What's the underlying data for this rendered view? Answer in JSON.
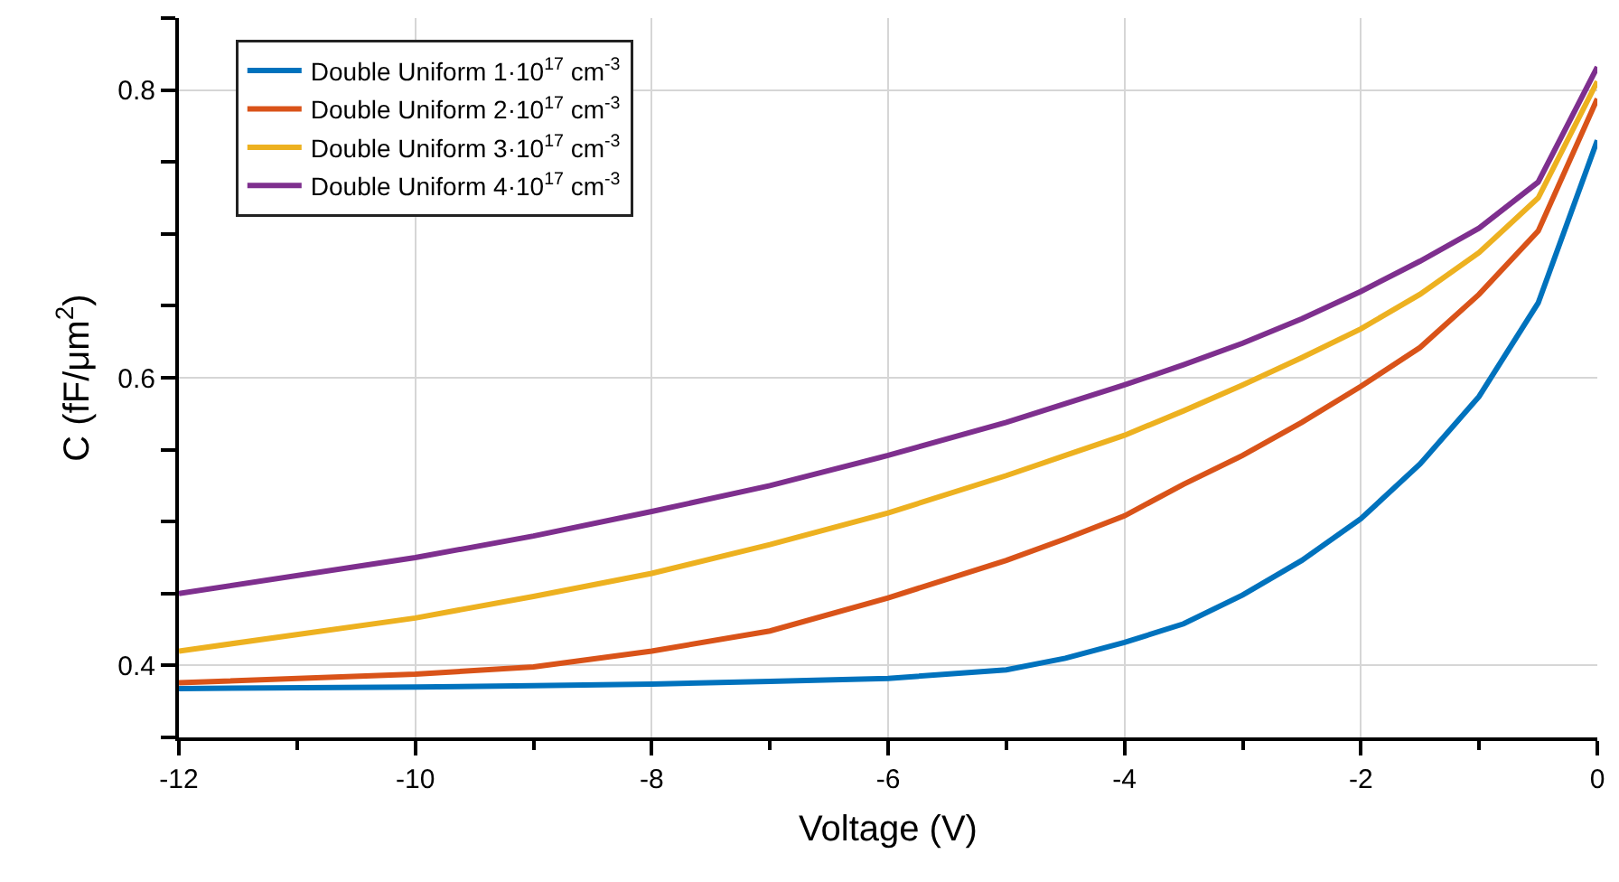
{
  "chart_data": {
    "type": "line",
    "xlabel": "Voltage (V)",
    "ylabel": "C (fF/μm$^{2}$)",
    "x": [
      -12,
      -10,
      -9,
      -8,
      -7,
      -6,
      -5,
      -4.5,
      -4,
      -3.5,
      -3,
      -2.5,
      -2,
      -1.5,
      -1,
      -0.5,
      0
    ],
    "series": [
      {
        "name": "Double Uniform 1·10$^{17}$ cm$^{-3}$",
        "color": "#0072bd",
        "values": [
          0.384,
          0.385,
          0.386,
          0.387,
          0.389,
          0.391,
          0.397,
          0.405,
          0.416,
          0.429,
          0.449,
          0.473,
          0.502,
          0.54,
          0.587,
          0.652,
          0.765
        ]
      },
      {
        "name": "Double Uniform 2·10$^{17}$ cm$^{-3}$",
        "color": "#d95319",
        "values": [
          0.388,
          0.394,
          0.399,
          0.41,
          0.424,
          0.447,
          0.473,
          0.488,
          0.504,
          0.526,
          0.546,
          0.569,
          0.594,
          0.621,
          0.658,
          0.702,
          0.794
        ]
      },
      {
        "name": "Double Uniform 3·10$^{17}$ cm$^{-3}$",
        "color": "#edb120",
        "values": [
          0.41,
          0.433,
          0.448,
          0.464,
          0.484,
          0.506,
          0.532,
          0.546,
          0.56,
          0.577,
          0.595,
          0.614,
          0.634,
          0.658,
          0.687,
          0.725,
          0.806
        ]
      },
      {
        "name": "Double Uniform 4·10$^{17}$ cm$^{-3}$",
        "color": "#7e2f8e",
        "values": [
          0.45,
          0.475,
          0.49,
          0.507,
          0.525,
          0.546,
          0.569,
          0.582,
          0.595,
          0.609,
          0.624,
          0.641,
          0.66,
          0.681,
          0.704,
          0.736,
          0.816
        ]
      }
    ],
    "xlim": [
      -12,
      0
    ],
    "xticks": [
      -12,
      -10,
      -8,
      -6,
      -4,
      -2,
      0
    ],
    "ylim": [
      0.35,
      0.85
    ],
    "yticks": [
      0.4,
      0.6,
      0.8
    ],
    "grid": true,
    "legend": "top left",
    "marker": "none",
    "line_style": "solid"
  }
}
